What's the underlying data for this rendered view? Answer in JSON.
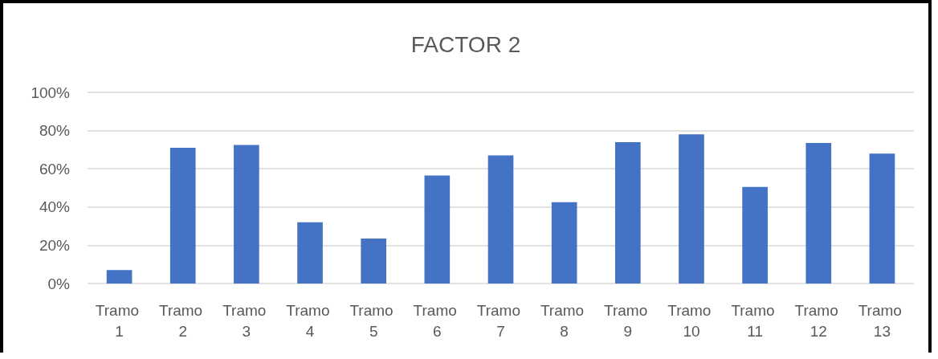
{
  "chart_data": {
    "type": "bar",
    "title": "FACTOR 2",
    "categories": [
      "Tramo 1",
      "Tramo 2",
      "Tramo 3",
      "Tramo 4",
      "Tramo 5",
      "Tramo 6",
      "Tramo 7",
      "Tramo 8",
      "Tramo 9",
      "Tramo 10",
      "Tramo 11",
      "Tramo 12",
      "Tramo 13"
    ],
    "values": [
      7,
      71,
      72.5,
      32,
      23.5,
      56.5,
      67,
      42.5,
      74,
      78,
      50.5,
      73.5,
      68
    ],
    "color": "#4472c4",
    "ylim": [
      0,
      100
    ],
    "yticks": [
      {
        "value": 0,
        "label": "0%"
      },
      {
        "value": 20,
        "label": "20%"
      },
      {
        "value": 40,
        "label": "40%"
      },
      {
        "value": 60,
        "label": "60%"
      },
      {
        "value": 80,
        "label": "80%"
      },
      {
        "value": 100,
        "label": "100%"
      }
    ],
    "grid": "y"
  }
}
